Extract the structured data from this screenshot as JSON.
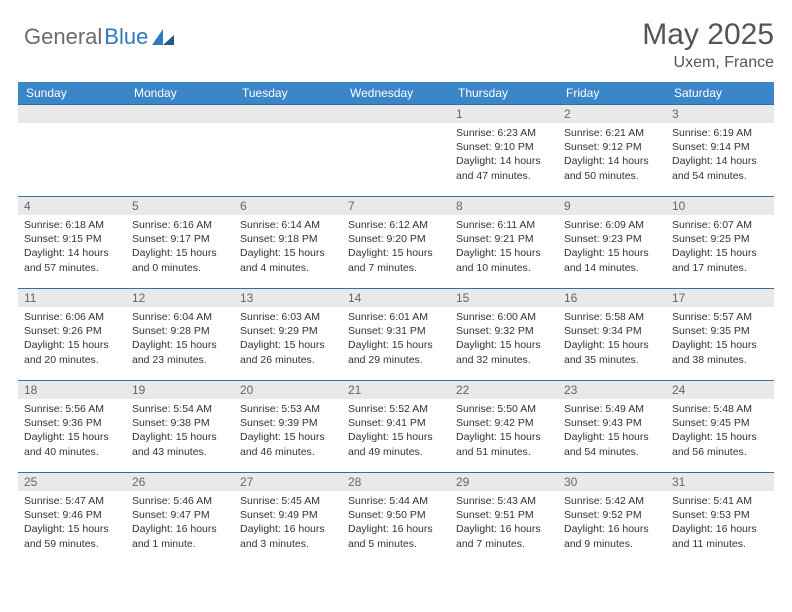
{
  "brand": {
    "part1": "General",
    "part2": "Blue"
  },
  "title": "May 2025",
  "location": "Uxem, France",
  "theme": {
    "header_bg": "#3a86c8",
    "header_fg": "#ffffff",
    "row_border": "#2f6fa8",
    "daynum_bg": "#e9e9e9",
    "daynum_fg": "#666666",
    "body_text": "#333333",
    "page_bg": "#ffffff",
    "title_color": "#555555",
    "logo_gray": "#6b6b6b",
    "logo_blue": "#2f7bbf"
  },
  "weekdays": [
    "Sunday",
    "Monday",
    "Tuesday",
    "Wednesday",
    "Thursday",
    "Friday",
    "Saturday"
  ],
  "leading_blanks": 4,
  "days": [
    {
      "n": "1",
      "sunrise": "6:23 AM",
      "sunset": "9:10 PM",
      "daylight": "14 hours and 47 minutes."
    },
    {
      "n": "2",
      "sunrise": "6:21 AM",
      "sunset": "9:12 PM",
      "daylight": "14 hours and 50 minutes."
    },
    {
      "n": "3",
      "sunrise": "6:19 AM",
      "sunset": "9:14 PM",
      "daylight": "14 hours and 54 minutes."
    },
    {
      "n": "4",
      "sunrise": "6:18 AM",
      "sunset": "9:15 PM",
      "daylight": "14 hours and 57 minutes."
    },
    {
      "n": "5",
      "sunrise": "6:16 AM",
      "sunset": "9:17 PM",
      "daylight": "15 hours and 0 minutes."
    },
    {
      "n": "6",
      "sunrise": "6:14 AM",
      "sunset": "9:18 PM",
      "daylight": "15 hours and 4 minutes."
    },
    {
      "n": "7",
      "sunrise": "6:12 AM",
      "sunset": "9:20 PM",
      "daylight": "15 hours and 7 minutes."
    },
    {
      "n": "8",
      "sunrise": "6:11 AM",
      "sunset": "9:21 PM",
      "daylight": "15 hours and 10 minutes."
    },
    {
      "n": "9",
      "sunrise": "6:09 AM",
      "sunset": "9:23 PM",
      "daylight": "15 hours and 14 minutes."
    },
    {
      "n": "10",
      "sunrise": "6:07 AM",
      "sunset": "9:25 PM",
      "daylight": "15 hours and 17 minutes."
    },
    {
      "n": "11",
      "sunrise": "6:06 AM",
      "sunset": "9:26 PM",
      "daylight": "15 hours and 20 minutes."
    },
    {
      "n": "12",
      "sunrise": "6:04 AM",
      "sunset": "9:28 PM",
      "daylight": "15 hours and 23 minutes."
    },
    {
      "n": "13",
      "sunrise": "6:03 AM",
      "sunset": "9:29 PM",
      "daylight": "15 hours and 26 minutes."
    },
    {
      "n": "14",
      "sunrise": "6:01 AM",
      "sunset": "9:31 PM",
      "daylight": "15 hours and 29 minutes."
    },
    {
      "n": "15",
      "sunrise": "6:00 AM",
      "sunset": "9:32 PM",
      "daylight": "15 hours and 32 minutes."
    },
    {
      "n": "16",
      "sunrise": "5:58 AM",
      "sunset": "9:34 PM",
      "daylight": "15 hours and 35 minutes."
    },
    {
      "n": "17",
      "sunrise": "5:57 AM",
      "sunset": "9:35 PM",
      "daylight": "15 hours and 38 minutes."
    },
    {
      "n": "18",
      "sunrise": "5:56 AM",
      "sunset": "9:36 PM",
      "daylight": "15 hours and 40 minutes."
    },
    {
      "n": "19",
      "sunrise": "5:54 AM",
      "sunset": "9:38 PM",
      "daylight": "15 hours and 43 minutes."
    },
    {
      "n": "20",
      "sunrise": "5:53 AM",
      "sunset": "9:39 PM",
      "daylight": "15 hours and 46 minutes."
    },
    {
      "n": "21",
      "sunrise": "5:52 AM",
      "sunset": "9:41 PM",
      "daylight": "15 hours and 49 minutes."
    },
    {
      "n": "22",
      "sunrise": "5:50 AM",
      "sunset": "9:42 PM",
      "daylight": "15 hours and 51 minutes."
    },
    {
      "n": "23",
      "sunrise": "5:49 AM",
      "sunset": "9:43 PM",
      "daylight": "15 hours and 54 minutes."
    },
    {
      "n": "24",
      "sunrise": "5:48 AM",
      "sunset": "9:45 PM",
      "daylight": "15 hours and 56 minutes."
    },
    {
      "n": "25",
      "sunrise": "5:47 AM",
      "sunset": "9:46 PM",
      "daylight": "15 hours and 59 minutes."
    },
    {
      "n": "26",
      "sunrise": "5:46 AM",
      "sunset": "9:47 PM",
      "daylight": "16 hours and 1 minute."
    },
    {
      "n": "27",
      "sunrise": "5:45 AM",
      "sunset": "9:49 PM",
      "daylight": "16 hours and 3 minutes."
    },
    {
      "n": "28",
      "sunrise": "5:44 AM",
      "sunset": "9:50 PM",
      "daylight": "16 hours and 5 minutes."
    },
    {
      "n": "29",
      "sunrise": "5:43 AM",
      "sunset": "9:51 PM",
      "daylight": "16 hours and 7 minutes."
    },
    {
      "n": "30",
      "sunrise": "5:42 AM",
      "sunset": "9:52 PM",
      "daylight": "16 hours and 9 minutes."
    },
    {
      "n": "31",
      "sunrise": "5:41 AM",
      "sunset": "9:53 PM",
      "daylight": "16 hours and 11 minutes."
    }
  ],
  "labels": {
    "sunrise": "Sunrise:",
    "sunset": "Sunset:",
    "daylight": "Daylight:"
  }
}
